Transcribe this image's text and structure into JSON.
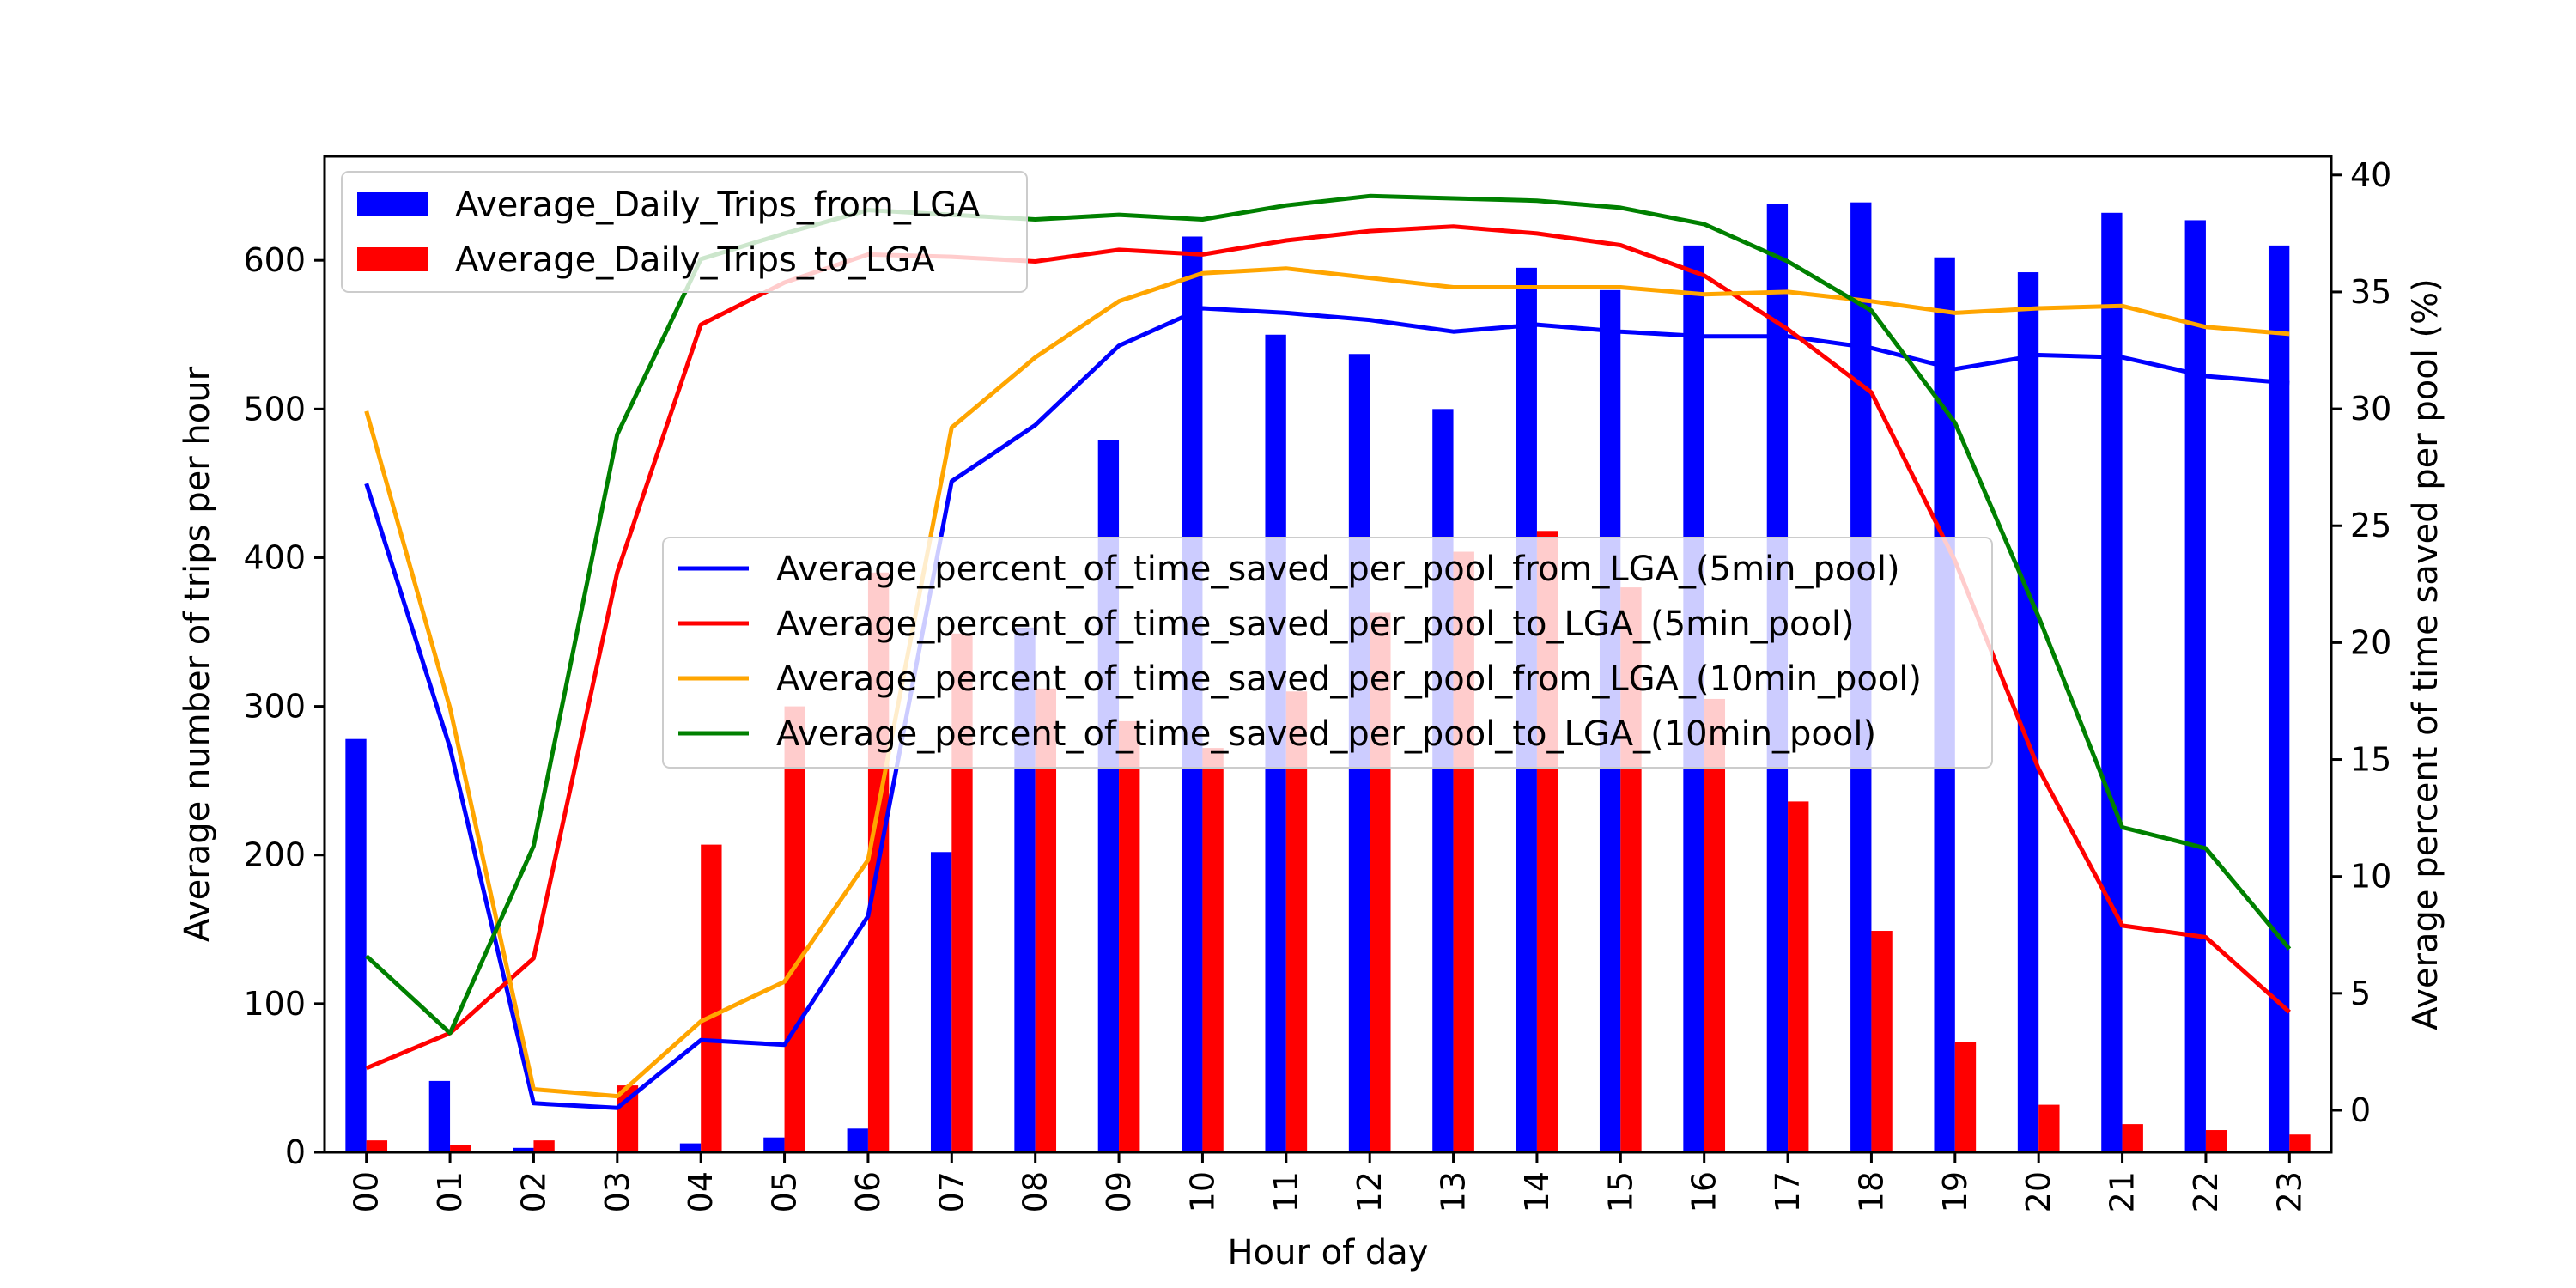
{
  "chart_data": {
    "type": "bar",
    "categories": [
      "00",
      "01",
      "02",
      "03",
      "04",
      "05",
      "06",
      "07",
      "08",
      "09",
      "10",
      "11",
      "12",
      "13",
      "14",
      "15",
      "16",
      "17",
      "18",
      "19",
      "20",
      "21",
      "22",
      "23"
    ],
    "xlabel": "Hour of day",
    "ylabel": "Average number of trips per hour",
    "y2label": "Average percent of time saved per pool (%)",
    "ylim": [
      0,
      670
    ],
    "y2lim": [
      -1.8,
      40.8
    ],
    "yticks": [
      0,
      100,
      200,
      300,
      400,
      500,
      600
    ],
    "y2ticks": [
      0,
      5,
      10,
      15,
      20,
      25,
      30,
      35,
      40
    ],
    "bar_series": [
      {
        "name": "Average_Daily_Trips_from_LGA",
        "color": "#0000ff",
        "values": [
          278,
          48,
          3,
          1,
          6,
          10,
          16,
          202,
          353,
          479,
          616,
          550,
          537,
          500,
          595,
          580,
          610,
          638,
          639,
          602,
          592,
          632,
          627,
          610
        ]
      },
      {
        "name": "Average_Daily_Trips_to_LGA",
        "color": "#ff0000",
        "values": [
          8,
          5,
          8,
          45,
          207,
          300,
          390,
          349,
          312,
          290,
          272,
          310,
          363,
          404,
          418,
          380,
          305,
          236,
          149,
          74,
          32,
          19,
          15,
          12
        ]
      }
    ],
    "line_series": [
      {
        "name": "Average_percent_of_time_saved_per_pool_from_LGA_(5min_pool)",
        "color": "#0000ff",
        "values": [
          26.8,
          15.5,
          0.3,
          0.1,
          3.0,
          2.8,
          8.3,
          26.9,
          29.3,
          32.7,
          34.3,
          34.1,
          33.8,
          33.3,
          33.6,
          33.3,
          33.1,
          33.1,
          32.6,
          31.7,
          32.3,
          32.2,
          31.4,
          31.1
        ]
      },
      {
        "name": "Average_percent_of_time_saved_per_pool_to_LGA_(5min_pool)",
        "color": "#ff0000",
        "values": [
          1.8,
          3.3,
          6.5,
          23.0,
          33.6,
          35.4,
          36.6,
          36.5,
          36.3,
          36.8,
          36.6,
          37.2,
          37.6,
          37.8,
          37.5,
          37.0,
          35.7,
          33.4,
          30.7,
          23.5,
          14.6,
          7.9,
          7.4,
          4.2
        ]
      },
      {
        "name": "Average_percent_of_time_saved_per_pool_from_LGA_(10min_pool)",
        "color": "#ffa500",
        "values": [
          29.9,
          17.2,
          0.9,
          0.6,
          3.8,
          5.5,
          10.7,
          29.2,
          32.2,
          34.6,
          35.8,
          36.0,
          35.6,
          35.2,
          35.2,
          35.2,
          34.9,
          35.0,
          34.6,
          34.1,
          34.3,
          34.4,
          33.5,
          33.2
        ]
      },
      {
        "name": "Average_percent_of_time_saved_per_pool_to_LGA_(10min_pool)",
        "color": "#008000",
        "values": [
          6.6,
          3.3,
          11.3,
          28.9,
          36.4,
          37.5,
          38.5,
          38.3,
          38.1,
          38.3,
          38.1,
          38.7,
          39.1,
          39.0,
          38.9,
          38.6,
          37.9,
          36.3,
          34.2,
          29.4,
          21.1,
          12.1,
          11.2,
          6.9
        ]
      }
    ]
  }
}
